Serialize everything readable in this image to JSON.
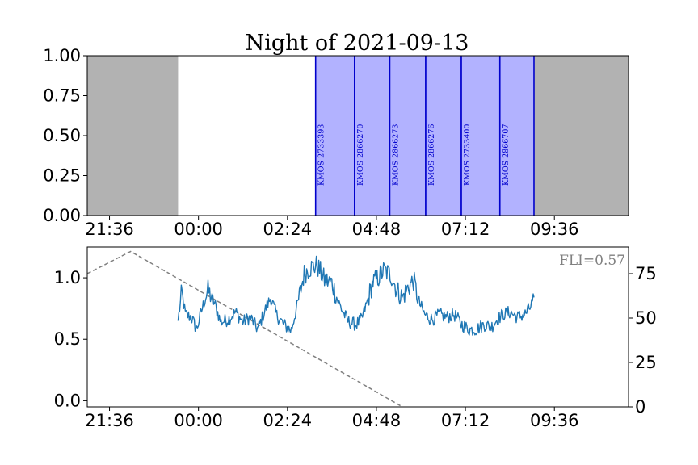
{
  "chart_data": [
    {
      "type": "timeline",
      "title": "Night of 2021-09-13",
      "ylim": [
        0,
        1
      ],
      "yticks": [
        "0.00",
        "0.25",
        "0.50",
        "0.75",
        "1.00"
      ],
      "xlim_hours": [
        21.0,
        35.6
      ],
      "xticks": [
        {
          "label": "21:36",
          "hour": 21.6
        },
        {
          "label": "00:00",
          "hour": 24.0
        },
        {
          "label": "02:24",
          "hour": 26.4
        },
        {
          "label": "04:48",
          "hour": 28.8
        },
        {
          "label": "07:12",
          "hour": 31.2
        },
        {
          "label": "09:36",
          "hour": 33.6
        }
      ],
      "daytime_shading": [
        {
          "start_hour": 21.0,
          "end_hour": 23.45
        },
        {
          "start_hour": 33.05,
          "end_hour": 35.6
        }
      ],
      "observations": [
        {
          "label": "KMOS 2733393",
          "start_hour": 27.16,
          "end_hour": 28.21
        },
        {
          "label": "KMOS 2866270",
          "start_hour": 28.21,
          "end_hour": 29.16
        },
        {
          "label": "KMOS 2866273",
          "start_hour": 29.16,
          "end_hour": 30.13
        },
        {
          "label": "KMOS 2866276",
          "start_hour": 30.13,
          "end_hour": 31.09
        },
        {
          "label": "KMOS 2733400",
          "start_hour": 31.09,
          "end_hour": 32.13
        },
        {
          "label": "KMOS 2866707",
          "start_hour": 32.13,
          "end_hour": 33.05
        }
      ],
      "colors": {
        "daytime": "#b2b2b2",
        "observation_fill": "#b2b2ff",
        "observation_edge": "#0000cc",
        "label": "#0000cc"
      }
    },
    {
      "type": "line",
      "annotation": "FLI=0.57",
      "ylim_left": [
        -0.05,
        1.25
      ],
      "yticks_left": [
        "0.0",
        "0.5",
        "1.0"
      ],
      "ylim_right": [
        0,
        90
      ],
      "yticks_right": [
        "0",
        "25",
        "50",
        "75"
      ],
      "xlim_hours": [
        21.0,
        35.6
      ],
      "xticks": [
        {
          "label": "21:36",
          "hour": 21.6
        },
        {
          "label": "00:00",
          "hour": 24.0
        },
        {
          "label": "02:24",
          "hour": 26.4
        },
        {
          "label": "04:48",
          "hour": 28.8
        },
        {
          "label": "07:12",
          "hour": 31.2
        },
        {
          "label": "09:36",
          "hour": 33.6
        }
      ],
      "series": [
        {
          "axis": "left",
          "style": "solid",
          "color": "#1f77b4",
          "anchors": [
            [
              23.45,
              0.65
            ],
            [
              23.55,
              0.88
            ],
            [
              23.65,
              0.7
            ],
            [
              23.8,
              0.68
            ],
            [
              23.95,
              0.58
            ],
            [
              24.1,
              0.75
            ],
            [
              24.25,
              0.9
            ],
            [
              24.45,
              0.78
            ],
            [
              24.6,
              0.64
            ],
            [
              24.8,
              0.66
            ],
            [
              25.0,
              0.72
            ],
            [
              25.2,
              0.64
            ],
            [
              25.4,
              0.68
            ],
            [
              25.6,
              0.58
            ],
            [
              25.8,
              0.74
            ],
            [
              25.95,
              0.84
            ],
            [
              26.1,
              0.7
            ],
            [
              26.3,
              0.62
            ],
            [
              26.5,
              0.57
            ],
            [
              26.7,
              0.82
            ],
            [
              26.85,
              1.03
            ],
            [
              27.0,
              1.08
            ],
            [
              27.2,
              1.1
            ],
            [
              27.4,
              0.98
            ],
            [
              27.6,
              0.96
            ],
            [
              27.75,
              0.82
            ],
            [
              27.9,
              0.72
            ],
            [
              28.05,
              0.64
            ],
            [
              28.25,
              0.62
            ],
            [
              28.4,
              0.66
            ],
            [
              28.55,
              0.8
            ],
            [
              28.7,
              0.96
            ],
            [
              28.85,
              1.0
            ],
            [
              29.0,
              1.06
            ],
            [
              29.2,
              1.02
            ],
            [
              29.35,
              0.9
            ],
            [
              29.5,
              0.84
            ],
            [
              29.65,
              0.92
            ],
            [
              29.8,
              0.98
            ],
            [
              29.95,
              0.8
            ],
            [
              30.1,
              0.7
            ],
            [
              30.3,
              0.66
            ],
            [
              30.5,
              0.7
            ],
            [
              30.7,
              0.68
            ],
            [
              30.9,
              0.7
            ],
            [
              31.1,
              0.62
            ],
            [
              31.3,
              0.58
            ],
            [
              31.5,
              0.58
            ],
            [
              31.7,
              0.62
            ],
            [
              31.9,
              0.6
            ],
            [
              32.05,
              0.66
            ],
            [
              32.2,
              0.7
            ],
            [
              32.4,
              0.72
            ],
            [
              32.6,
              0.68
            ],
            [
              32.8,
              0.7
            ],
            [
              32.95,
              0.76
            ],
            [
              33.05,
              0.84
            ]
          ]
        },
        {
          "axis": "right",
          "style": "dashed",
          "color": "#808080",
          "points": [
            [
              21.0,
              75.0
            ],
            [
              22.17,
              87.5
            ],
            [
              29.5,
              0.0
            ]
          ]
        }
      ],
      "colors": {
        "annotation": "#808080"
      }
    }
  ]
}
